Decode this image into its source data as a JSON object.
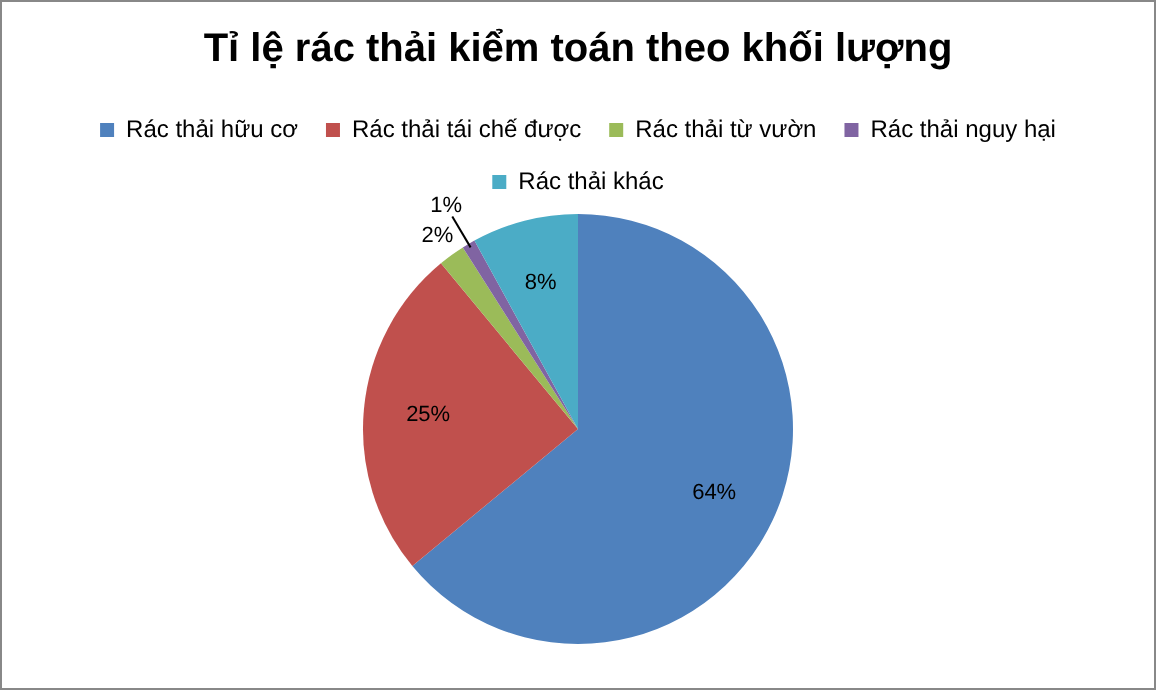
{
  "chart_data": {
    "type": "pie",
    "title": "Tỉ lệ rác thải kiểm toán theo khối lượng",
    "categories": [
      "Rác thải hữu cơ",
      "Rác thải tái chế được",
      "Rác thải từ vườn",
      "Rác thải nguy hại",
      "Rác thải khác"
    ],
    "values": [
      64,
      25,
      2,
      1,
      8
    ],
    "colors": [
      "#4f81bd",
      "#c0504d",
      "#9bbb59",
      "#8064a2",
      "#4bacc6"
    ],
    "value_labels": [
      "64%",
      "25%",
      "2%",
      "1%",
      "8%"
    ],
    "legend": "top"
  }
}
